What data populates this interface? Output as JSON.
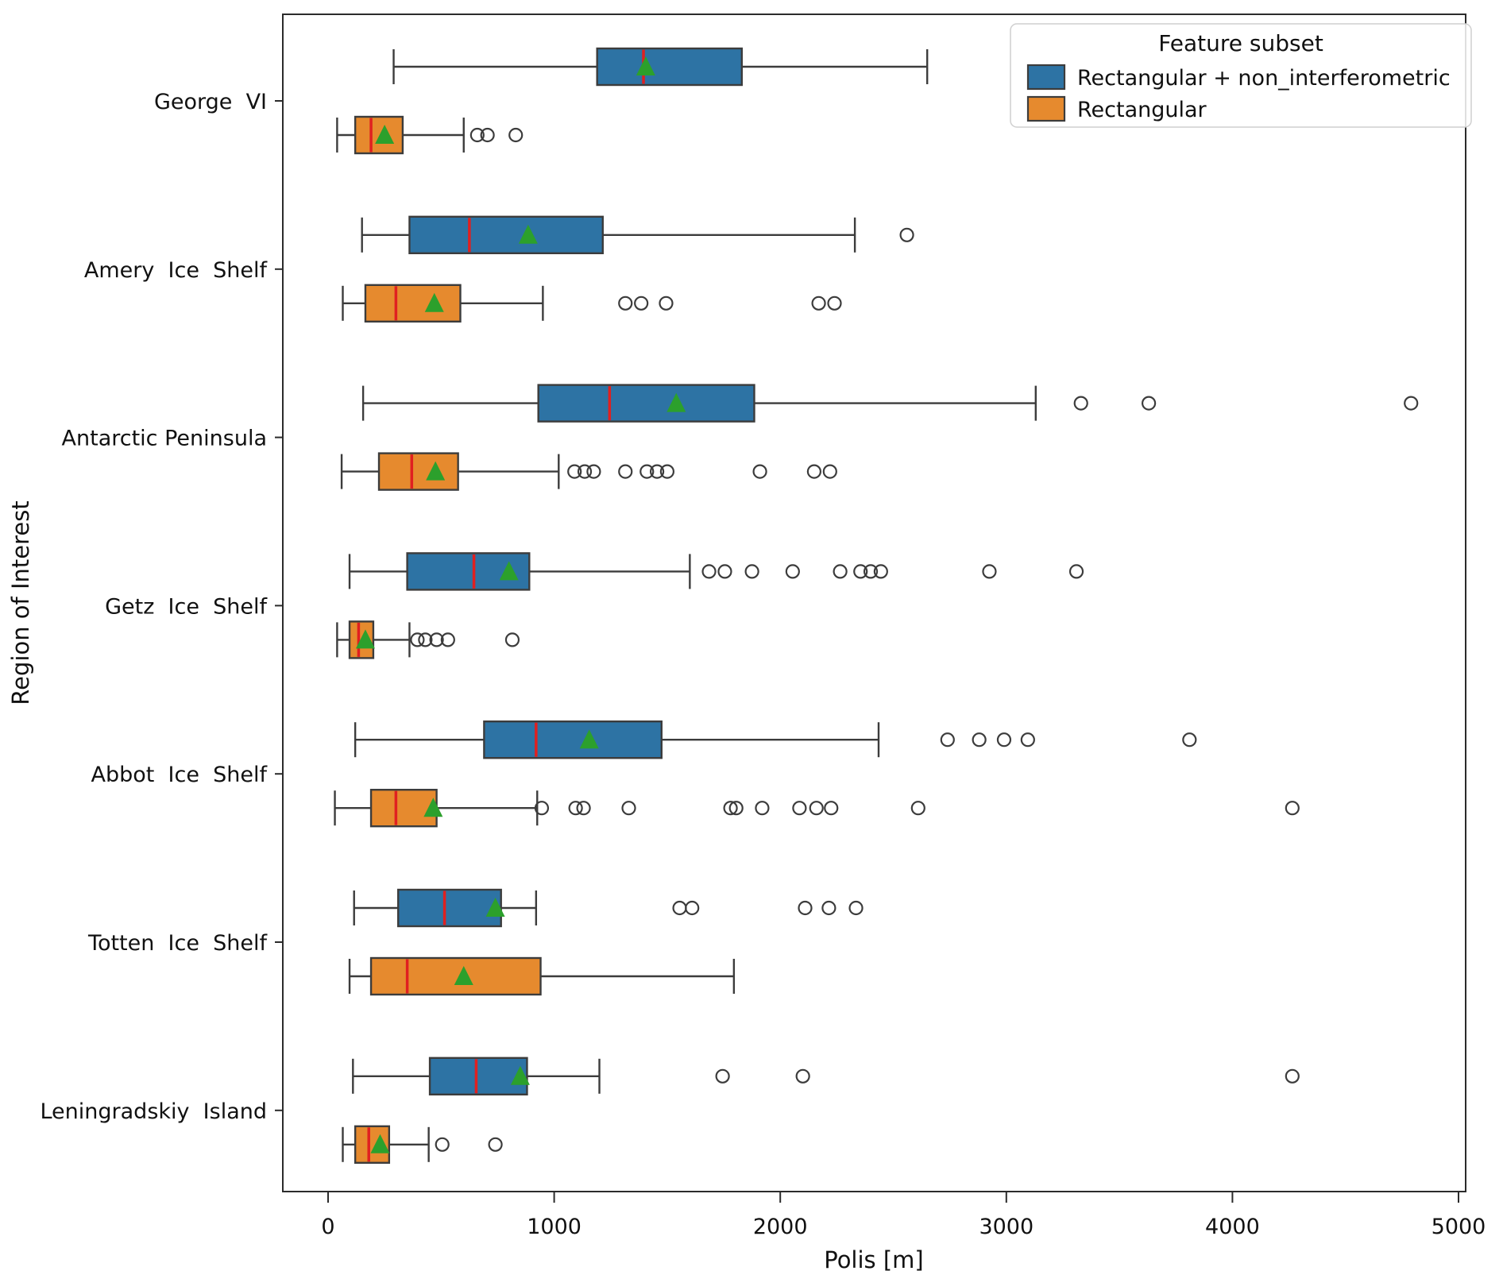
{
  "chart_data": {
    "type": "boxplot",
    "orientation": "horizontal",
    "title": "",
    "xlabel": "Polis [m]",
    "ylabel": "Region of Interest",
    "xlim": [
      -210,
      5040
    ],
    "xticks": [
      0,
      1000,
      2000,
      3000,
      4000,
      5000
    ],
    "grid": false,
    "legend_title": "Feature subset",
    "legend_position": "upper right",
    "categories": [
      "George  VI",
      "Amery  Ice  Shelf",
      "Antarctic Peninsula",
      "Getz  Ice  Shelf",
      "Abbot  Ice  Shelf",
      "Totten  Ice  Shelf",
      "Leningradskiy  Island"
    ],
    "style": {
      "median_color": "#e02020",
      "mean_marker": "triangle-up",
      "mean_marker_color": "#2ca02c",
      "box_edge_color": "#3c3c3c",
      "outlier_marker": "open-circle"
    },
    "series": [
      {
        "name": "Rectangular + non_interferometric",
        "color": "#2d73a4",
        "boxes": [
          {
            "region": "George VI",
            "whislo": 290,
            "q1": 1190,
            "med": 1395,
            "mean": 1405,
            "q3": 1830,
            "whishi": 2650,
            "outliers": []
          },
          {
            "region": "Amery Ice Shelf",
            "whislo": 150,
            "q1": 360,
            "med": 625,
            "mean": 885,
            "q3": 1215,
            "whishi": 2330,
            "outliers": [
              2560
            ]
          },
          {
            "region": "Antarctic Peninsula",
            "whislo": 155,
            "q1": 930,
            "med": 1245,
            "mean": 1540,
            "q3": 1885,
            "whishi": 3130,
            "outliers": [
              3330,
              3630,
              4790
            ]
          },
          {
            "region": "Getz Ice Shelf",
            "whislo": 95,
            "q1": 350,
            "med": 645,
            "mean": 800,
            "q3": 890,
            "whishi": 1600,
            "outliers": [
              1685,
              1755,
              1875,
              2055,
              2265,
              2355,
              2400,
              2445,
              2925,
              3310
            ]
          },
          {
            "region": "Abbot Ice Shelf",
            "whislo": 120,
            "q1": 690,
            "med": 920,
            "mean": 1155,
            "q3": 1475,
            "whishi": 2435,
            "outliers": [
              2740,
              2880,
              2990,
              3095,
              3810
            ]
          },
          {
            "region": "Totten Ice Shelf",
            "whislo": 115,
            "q1": 310,
            "med": 515,
            "mean": 740,
            "q3": 765,
            "whishi": 920,
            "outliers": [
              1555,
              1610,
              2110,
              2215,
              2335
            ]
          },
          {
            "region": "Leningradskiy Island",
            "whislo": 110,
            "q1": 450,
            "med": 655,
            "mean": 850,
            "q3": 880,
            "whishi": 1200,
            "outliers": [
              1745,
              2100,
              4265
            ]
          }
        ]
      },
      {
        "name": "Rectangular",
        "color": "#e68a2e",
        "boxes": [
          {
            "region": "George VI",
            "whislo": 40,
            "q1": 120,
            "med": 190,
            "mean": 250,
            "q3": 330,
            "whishi": 600,
            "outliers": [
              660,
              705,
              830
            ]
          },
          {
            "region": "Amery Ice Shelf",
            "whislo": 65,
            "q1": 165,
            "med": 300,
            "mean": 470,
            "q3": 585,
            "whishi": 950,
            "outliers": [
              1315,
              1385,
              1495,
              2170,
              2240
            ]
          },
          {
            "region": "Antarctic Peninsula",
            "whislo": 60,
            "q1": 225,
            "med": 370,
            "mean": 475,
            "q3": 575,
            "whishi": 1020,
            "outliers": [
              1090,
              1135,
              1175,
              1315,
              1410,
              1455,
              1500,
              1910,
              2150,
              2220
            ]
          },
          {
            "region": "Getz Ice Shelf",
            "whislo": 40,
            "q1": 95,
            "med": 135,
            "mean": 165,
            "q3": 200,
            "whishi": 360,
            "outliers": [
              395,
              430,
              480,
              530,
              815
            ]
          },
          {
            "region": "Abbot Ice Shelf",
            "whislo": 30,
            "q1": 190,
            "med": 300,
            "mean": 465,
            "q3": 480,
            "whishi": 925,
            "outliers": [
              945,
              1095,
              1130,
              1330,
              1780,
              1805,
              1920,
              2085,
              2160,
              2225,
              2610,
              4265
            ]
          },
          {
            "region": "Totten Ice Shelf",
            "whislo": 95,
            "q1": 190,
            "med": 350,
            "mean": 600,
            "q3": 940,
            "whishi": 1795,
            "outliers": []
          },
          {
            "region": "Leningradskiy Island",
            "whislo": 65,
            "q1": 120,
            "med": 180,
            "mean": 230,
            "q3": 270,
            "whishi": 445,
            "outliers": [
              505,
              740
            ]
          }
        ]
      }
    ]
  }
}
